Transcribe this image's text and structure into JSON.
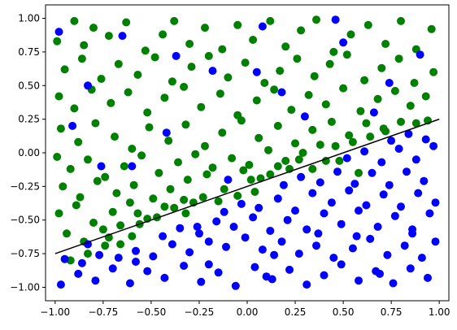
{
  "chart_data": {
    "type": "scatter",
    "title": "",
    "xlabel": "",
    "ylabel": "",
    "xlim": [
      -1.05,
      1.05
    ],
    "ylim": [
      -1.1,
      1.1
    ],
    "x_ticks": [
      -1.0,
      -0.75,
      -0.5,
      -0.25,
      0.0,
      0.25,
      0.5,
      0.75,
      1.0
    ],
    "x_tick_labels": [
      "−1.00",
      "−0.75",
      "−0.50",
      "−0.25",
      "0.00",
      "0.25",
      "0.50",
      "0.75",
      "1.00"
    ],
    "y_ticks": [
      -1.0,
      -0.75,
      -0.5,
      -0.25,
      0.0,
      0.25,
      0.5,
      0.75,
      1.0
    ],
    "y_tick_labels": [
      "−1.00",
      "−0.75",
      "−0.50",
      "−0.25",
      "0.00",
      "0.25",
      "0.50",
      "0.75",
      "1.00"
    ],
    "grid": false,
    "legend": "none",
    "colors": {
      "above": "#008000",
      "below": "#0000ff",
      "line": "#000000"
    },
    "decision_line": {
      "x": [
        -1.0,
        1.0
      ],
      "y": [
        -0.75,
        0.25
      ]
    },
    "series": [
      {
        "color": "#008000",
        "points": [
          [
            -0.99,
            0.83
          ],
          [
            -0.9,
            0.98
          ],
          [
            -0.85,
            0.8
          ],
          [
            -0.8,
            0.93
          ],
          [
            -0.72,
            0.87
          ],
          [
            -0.63,
            0.97
          ],
          [
            -0.53,
            0.76
          ],
          [
            -0.44,
            0.88
          ],
          [
            -0.38,
            0.98
          ],
          [
            -0.3,
            0.81
          ],
          [
            -0.22,
            0.93
          ],
          [
            -0.13,
            0.77
          ],
          [
            -0.05,
            0.95
          ],
          [
            0.03,
            0.84
          ],
          [
            0.12,
            0.98
          ],
          [
            0.2,
            0.79
          ],
          [
            0.28,
            0.91
          ],
          [
            0.36,
            0.99
          ],
          [
            0.45,
            0.75
          ],
          [
            0.54,
            0.88
          ],
          [
            0.63,
            0.95
          ],
          [
            0.72,
            0.81
          ],
          [
            0.8,
            0.98
          ],
          [
            0.88,
            0.77
          ],
          [
            0.96,
            0.92
          ],
          [
            -0.95,
            0.62
          ],
          [
            -0.86,
            0.7
          ],
          [
            -0.76,
            0.55
          ],
          [
            -0.67,
            0.66
          ],
          [
            -0.57,
            0.58
          ],
          [
            -0.48,
            0.71
          ],
          [
            -0.39,
            0.53
          ],
          [
            -0.29,
            0.64
          ],
          [
            -0.2,
            0.72
          ],
          [
            -0.1,
            0.56
          ],
          [
            -0.01,
            0.67
          ],
          [
            0.09,
            0.52
          ],
          [
            0.17,
            0.61
          ],
          [
            0.26,
            0.7
          ],
          [
            0.35,
            0.57
          ],
          [
            0.43,
            0.66
          ],
          [
            0.52,
            0.73
          ],
          [
            0.61,
            0.54
          ],
          [
            0.7,
            0.63
          ],
          [
            0.79,
            0.7
          ],
          [
            0.87,
            0.52
          ],
          [
            0.97,
            0.6
          ],
          [
            -0.98,
            0.42
          ],
          [
            -0.9,
            0.33
          ],
          [
            -0.81,
            0.47
          ],
          [
            -0.71,
            0.37
          ],
          [
            -0.62,
            0.45
          ],
          [
            -0.52,
            0.3
          ],
          [
            -0.43,
            0.41
          ],
          [
            -0.33,
            0.49
          ],
          [
            -0.24,
            0.34
          ],
          [
            -0.14,
            0.44
          ],
          [
            -0.05,
            0.28
          ],
          [
            0.05,
            0.39
          ],
          [
            0.14,
            0.47
          ],
          [
            0.23,
            0.32
          ],
          [
            0.32,
            0.43
          ],
          [
            0.41,
            0.36
          ],
          [
            0.5,
            0.48
          ],
          [
            0.59,
            0.31
          ],
          [
            0.68,
            0.4
          ],
          [
            0.77,
            0.46
          ],
          [
            0.85,
            0.35
          ],
          [
            0.93,
            0.42
          ],
          [
            -0.97,
            0.18
          ],
          [
            -0.88,
            0.08
          ],
          [
            -0.79,
            0.22
          ],
          [
            -0.69,
            0.12
          ],
          [
            -0.6,
            0.03
          ],
          [
            -0.51,
            0.19
          ],
          [
            -0.41,
            0.09
          ],
          [
            -0.32,
            0.21
          ],
          [
            -0.22,
            0.05
          ],
          [
            -0.13,
            0.15
          ],
          [
            -0.03,
            0.24
          ],
          [
            0.06,
            0.11
          ],
          [
            0.16,
            0.2
          ],
          [
            0.25,
            0.07
          ],
          [
            0.34,
            0.17
          ],
          [
            0.44,
            0.23
          ],
          [
            0.53,
            0.13
          ],
          [
            0.62,
            0.22
          ],
          [
            0.71,
            0.18
          ],
          [
            0.8,
            0.23
          ],
          [
            -0.99,
            -0.03
          ],
          [
            -0.92,
            -0.12
          ],
          [
            -0.83,
            -0.05
          ],
          [
            -0.74,
            -0.18
          ],
          [
            -0.64,
            -0.1
          ],
          [
            -0.55,
            -0.02
          ],
          [
            -0.46,
            -0.15
          ],
          [
            -0.36,
            -0.07
          ],
          [
            -0.27,
            -0.01
          ],
          [
            -0.18,
            -0.11
          ],
          [
            -0.08,
            -0.04
          ],
          [
            0.01,
            -0.09
          ],
          [
            0.11,
            0.02
          ],
          [
            0.2,
            -0.06
          ],
          [
            0.29,
            0.0
          ],
          [
            0.38,
            0.06
          ],
          [
            -0.96,
            -0.25
          ],
          [
            -0.87,
            -0.33
          ],
          [
            -0.78,
            -0.21
          ],
          [
            -0.68,
            -0.3
          ],
          [
            -0.59,
            -0.24
          ],
          [
            -0.49,
            -0.34
          ],
          [
            -0.4,
            -0.27
          ],
          [
            -0.31,
            -0.2
          ],
          [
            -0.21,
            -0.16
          ],
          [
            -0.12,
            -0.27
          ],
          [
            -0.02,
            -0.13
          ],
          [
            0.07,
            -0.19
          ],
          [
            0.16,
            -0.1
          ],
          [
            -0.98,
            -0.45
          ],
          [
            -0.89,
            -0.39
          ],
          [
            -0.8,
            -0.52
          ],
          [
            -0.7,
            -0.44
          ],
          [
            -0.61,
            -0.37
          ],
          [
            -0.52,
            -0.49
          ],
          [
            -0.43,
            -0.4
          ],
          [
            -0.33,
            -0.35
          ],
          [
            -0.23,
            -0.33
          ],
          [
            -0.15,
            -0.36
          ],
          [
            -0.94,
            -0.6
          ],
          [
            -0.85,
            -0.66
          ],
          [
            -0.75,
            -0.57
          ],
          [
            -0.66,
            -0.54
          ],
          [
            -0.56,
            -0.53
          ],
          [
            -0.47,
            -0.48
          ],
          [
            -0.92,
            -0.8
          ],
          [
            -0.83,
            -0.75
          ],
          [
            -0.74,
            -0.69
          ],
          [
            -0.66,
            -0.68
          ],
          [
            0.27,
            -0.05
          ],
          [
            0.46,
            0.05
          ],
          [
            0.55,
            0.08
          ],
          [
            0.64,
            0.12
          ],
          [
            0.72,
            0.16
          ],
          [
            0.88,
            0.22
          ],
          [
            0.94,
            0.24
          ],
          [
            0.02,
            -0.2
          ],
          [
            0.12,
            -0.16
          ],
          [
            0.22,
            -0.12
          ],
          [
            -0.38,
            -0.41
          ],
          [
            -0.28,
            -0.37
          ],
          [
            -0.57,
            -0.45
          ],
          [
            0.34,
            -0.12
          ],
          [
            0.41,
            -0.06
          ],
          [
            0.04,
            -0.29
          ],
          [
            -0.05,
            -0.32
          ],
          [
            0.48,
            -0.06
          ],
          [
            -0.32,
            -0.45
          ],
          [
            -0.6,
            -0.62
          ],
          [
            -0.72,
            -0.63
          ],
          [
            0.58,
            -0.15
          ]
        ]
      },
      {
        "color": "#0000ff",
        "points": [
          [
            -0.97,
            -0.98
          ],
          [
            -0.88,
            -0.9
          ],
          [
            -0.79,
            -0.95
          ],
          [
            -0.7,
            -0.86
          ],
          [
            -0.61,
            -0.97
          ],
          [
            -0.52,
            -0.88
          ],
          [
            -0.43,
            -0.93
          ],
          [
            -0.33,
            -0.84
          ],
          [
            -0.24,
            -0.96
          ],
          [
            -0.15,
            -0.89
          ],
          [
            -0.06,
            -0.99
          ],
          [
            0.04,
            -0.85
          ],
          [
            0.13,
            -0.94
          ],
          [
            0.22,
            -0.87
          ],
          [
            0.31,
            -0.98
          ],
          [
            0.4,
            -0.91
          ],
          [
            0.49,
            -0.83
          ],
          [
            0.58,
            -0.95
          ],
          [
            0.67,
            -0.88
          ],
          [
            0.76,
            -0.97
          ],
          [
            0.85,
            -0.86
          ],
          [
            0.94,
            -0.93
          ],
          [
            -0.95,
            -0.79
          ],
          [
            -0.86,
            -0.82
          ],
          [
            -0.77,
            -0.76
          ],
          [
            -0.67,
            -0.78
          ],
          [
            -0.58,
            -0.73
          ],
          [
            -0.49,
            -0.77
          ],
          [
            -0.39,
            -0.68
          ],
          [
            -0.3,
            -0.74
          ],
          [
            -0.2,
            -0.66
          ],
          [
            -0.11,
            -0.7
          ],
          [
            -0.01,
            -0.63
          ],
          [
            0.08,
            -0.72
          ],
          [
            0.18,
            -0.66
          ],
          [
            0.27,
            -0.75
          ],
          [
            0.36,
            -0.69
          ],
          [
            0.45,
            -0.78
          ],
          [
            0.55,
            -0.71
          ],
          [
            0.64,
            -0.64
          ],
          [
            0.73,
            -0.76
          ],
          [
            0.82,
            -0.69
          ],
          [
            0.91,
            -0.78
          ],
          [
            0.98,
            -0.66
          ],
          [
            -0.44,
            -0.62
          ],
          [
            -0.35,
            -0.56
          ],
          [
            -0.25,
            -0.6
          ],
          [
            -0.16,
            -0.51
          ],
          [
            -0.07,
            -0.55
          ],
          [
            0.03,
            -0.48
          ],
          [
            0.12,
            -0.58
          ],
          [
            0.21,
            -0.5
          ],
          [
            0.31,
            -0.57
          ],
          [
            0.4,
            -0.45
          ],
          [
            0.49,
            -0.53
          ],
          [
            0.58,
            -0.43
          ],
          [
            0.68,
            -0.55
          ],
          [
            0.77,
            -0.47
          ],
          [
            0.86,
            -0.57
          ],
          [
            0.95,
            -0.45
          ],
          [
            -0.12,
            -0.44
          ],
          [
            -0.03,
            -0.38
          ],
          [
            0.06,
            -0.41
          ],
          [
            0.16,
            -0.34
          ],
          [
            0.25,
            -0.43
          ],
          [
            0.34,
            -0.3
          ],
          [
            0.44,
            -0.37
          ],
          [
            0.53,
            -0.28
          ],
          [
            0.62,
            -0.39
          ],
          [
            0.71,
            -0.31
          ],
          [
            0.8,
            -0.4
          ],
          [
            0.89,
            -0.3
          ],
          [
            0.98,
            -0.37
          ],
          [
            0.19,
            -0.24
          ],
          [
            0.28,
            -0.18
          ],
          [
            0.38,
            -0.22
          ],
          [
            0.47,
            -0.14
          ],
          [
            0.56,
            -0.23
          ],
          [
            0.65,
            -0.15
          ],
          [
            0.74,
            -0.24
          ],
          [
            0.83,
            -0.14
          ],
          [
            0.92,
            -0.21
          ],
          [
            0.52,
            -0.04
          ],
          [
            0.61,
            0.01
          ],
          [
            0.7,
            -0.07
          ],
          [
            0.79,
            0.03
          ],
          [
            0.88,
            -0.05
          ],
          [
            0.97,
            0.05
          ],
          [
            0.75,
            0.09
          ],
          [
            0.84,
            0.14
          ],
          [
            0.93,
            0.1
          ],
          [
            -0.98,
            0.9
          ],
          [
            -0.83,
            0.5
          ],
          [
            -0.65,
            0.87
          ],
          [
            -0.42,
            0.15
          ],
          [
            -0.18,
            0.61
          ],
          [
            0.08,
            0.94
          ],
          [
            0.3,
            0.27
          ],
          [
            0.5,
            0.82
          ],
          [
            0.74,
            0.52
          ],
          [
            0.9,
            0.73
          ],
          [
            -0.91,
            0.2
          ],
          [
            -0.6,
            -0.1
          ],
          [
            -0.37,
            0.72
          ],
          [
            -0.1,
            -0.2
          ],
          [
            0.18,
            0.45
          ],
          [
            0.46,
            0.99
          ],
          [
            0.66,
            0.3
          ],
          [
            -0.76,
            -0.1
          ],
          [
            0.05,
            0.6
          ],
          [
            -0.58,
            -0.81
          ],
          [
            -0.26,
            -0.55
          ],
          [
            0.1,
            -0.92
          ],
          [
            0.37,
            -0.6
          ],
          [
            0.69,
            -0.9
          ],
          [
            0.86,
            -0.6
          ],
          [
            -0.83,
            -0.68
          ],
          [
            0.14,
            -0.76
          ],
          [
            -0.2,
            -0.83
          ],
          [
            0.57,
            -0.62
          ]
        ]
      }
    ]
  }
}
